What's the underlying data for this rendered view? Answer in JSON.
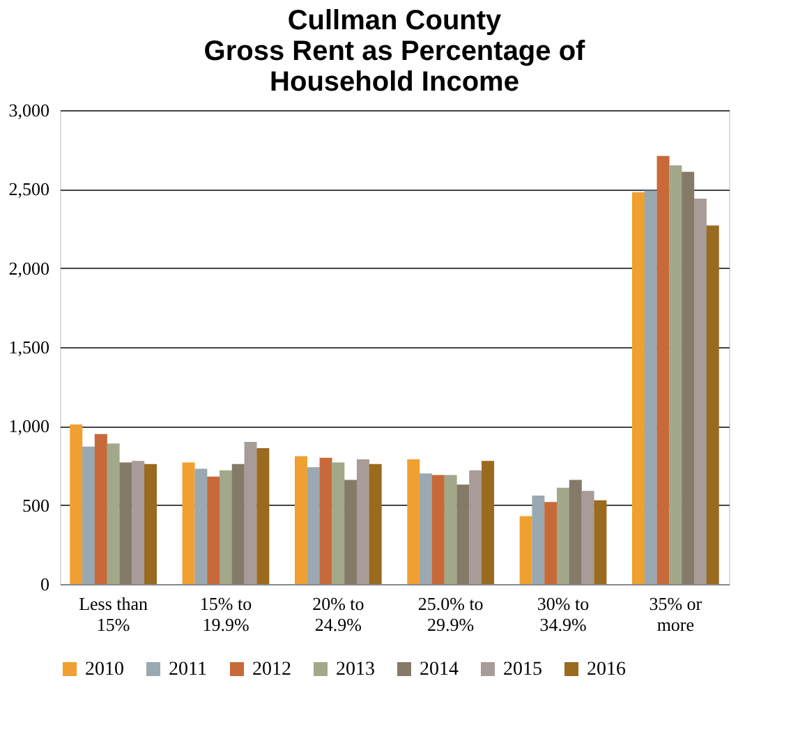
{
  "chart_data": {
    "type": "bar",
    "title": [
      "Cullman County",
      "Gross Rent as Percentage of",
      "Household Income"
    ],
    "categories": [
      [
        "Less than",
        "15%"
      ],
      [
        "15% to",
        "19.9%"
      ],
      [
        "20% to",
        "24.9%"
      ],
      [
        "25.0% to",
        "29.9%"
      ],
      [
        "30% to",
        "34.9%"
      ],
      [
        "35% or",
        "more"
      ]
    ],
    "series": [
      {
        "name": "2010",
        "color": "#f0a030",
        "values": [
          1010,
          770,
          810,
          790,
          430,
          2480
        ]
      },
      {
        "name": "2011",
        "color": "#9aa8b2",
        "values": [
          870,
          730,
          740,
          700,
          560,
          2490
        ]
      },
      {
        "name": "2012",
        "color": "#c8693a",
        "values": [
          950,
          680,
          800,
          690,
          520,
          2710
        ]
      },
      {
        "name": "2013",
        "color": "#a2a88a",
        "values": [
          890,
          720,
          770,
          690,
          610,
          2650
        ]
      },
      {
        "name": "2014",
        "color": "#857a68",
        "values": [
          770,
          760,
          660,
          630,
          660,
          2610
        ]
      },
      {
        "name": "2015",
        "color": "#a89c98",
        "values": [
          780,
          900,
          790,
          720,
          590,
          2440
        ]
      },
      {
        "name": "2016",
        "color": "#9a6a1e",
        "values": [
          760,
          860,
          760,
          780,
          530,
          2270
        ]
      }
    ],
    "ylim": [
      0,
      3000
    ],
    "yticks": [
      0,
      500,
      {
        "value": 1000,
        "label": "1,000"
      },
      {
        "value": 1500,
        "label": "1,500"
      },
      {
        "value": 2000,
        "label": "2,000"
      },
      {
        "value": 2500,
        "label": "2,500"
      },
      {
        "value": 3000,
        "label": "3,000"
      }
    ],
    "grid": "y",
    "legend": "bottom"
  }
}
